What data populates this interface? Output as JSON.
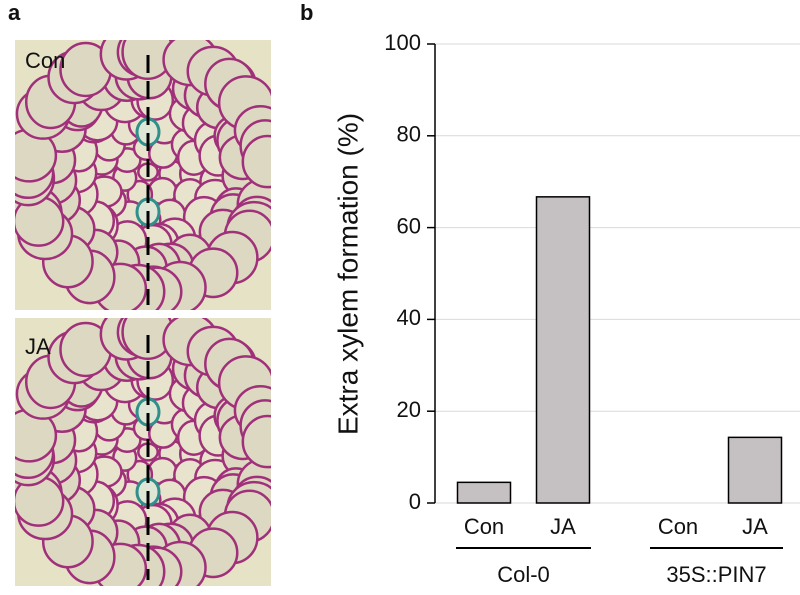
{
  "figure": {
    "panel_labels": [
      "a",
      "b"
    ],
    "image_labels": [
      "Con",
      "JA"
    ]
  },
  "chart_data": {
    "type": "bar",
    "ylabel": "Extra xylem formation (%)",
    "categories": [
      "Con",
      "JA",
      "Con",
      "JA"
    ],
    "groups": [
      "Col-0",
      "35S::PIN7"
    ],
    "values": [
      4.5,
      66.7,
      0,
      14.3
    ],
    "color": "#c5c0c2",
    "ylim": [
      0,
      100
    ],
    "yticks": [
      0,
      20,
      40,
      60,
      80,
      100
    ],
    "grid": true
  }
}
